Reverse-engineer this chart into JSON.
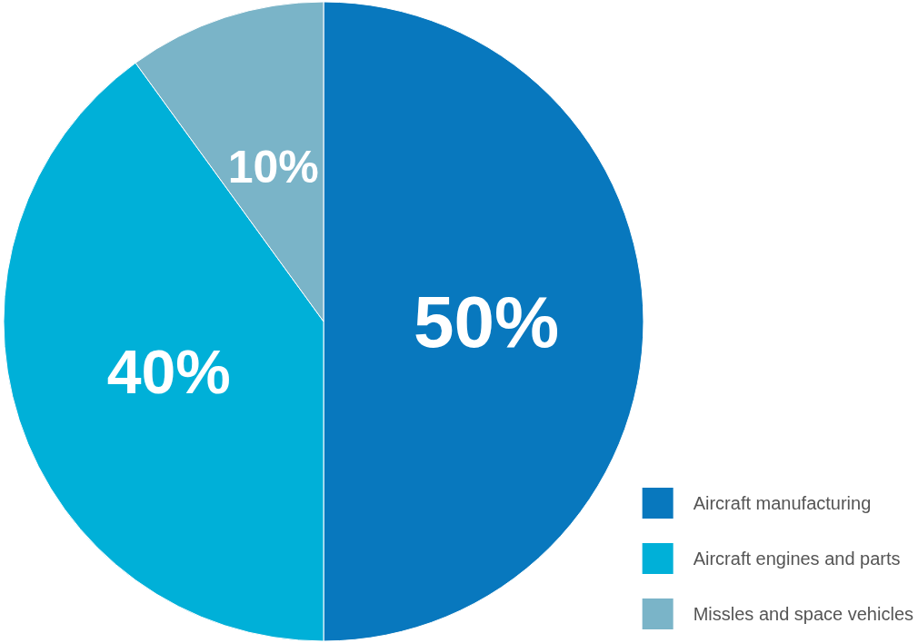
{
  "chart_data": {
    "type": "pie",
    "categories": [
      "Aircraft manufacturing",
      "Aircraft engines and parts",
      "Missles and space vehicles"
    ],
    "values": [
      50,
      40,
      10
    ],
    "colors": [
      "#0878be",
      "#00b0d8",
      "#7ab4c8"
    ],
    "value_labels": [
      "50%",
      "40%",
      "10%"
    ],
    "legend": "bottom right"
  }
}
